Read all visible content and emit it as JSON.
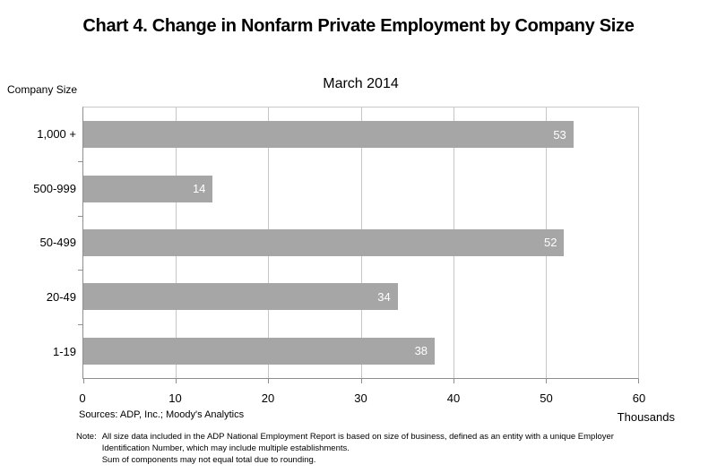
{
  "title": "Chart 4. Change in Nonfarm Private Employment by Company Size",
  "chart_data": {
    "type": "bar",
    "orientation": "horizontal",
    "subtitle": "March 2014",
    "ylabel": "Company Size",
    "xlabel": "Thousands",
    "categories": [
      "1,000 +",
      "500-999",
      "50-499",
      "20-49",
      "1-19"
    ],
    "values": [
      53,
      14,
      52,
      34,
      38
    ],
    "xlim": [
      0,
      60
    ],
    "x_ticks": [
      0,
      10,
      20,
      30,
      40,
      50,
      60
    ],
    "grid": true,
    "legend": "none",
    "bar_color": "#a6a6a6",
    "value_label_color": "#ffffff"
  },
  "footer": {
    "sources": "Sources: ADP, Inc.; Moody's Analytics",
    "note_label": "Note:",
    "note_lines": [
      "All size data included in the ADP National Employment Report is based on size of business, defined as an entity with a unique Employer",
      "Identification Number, which may include multiple establishments.",
      "Sum of components may not equal total due to rounding."
    ]
  }
}
